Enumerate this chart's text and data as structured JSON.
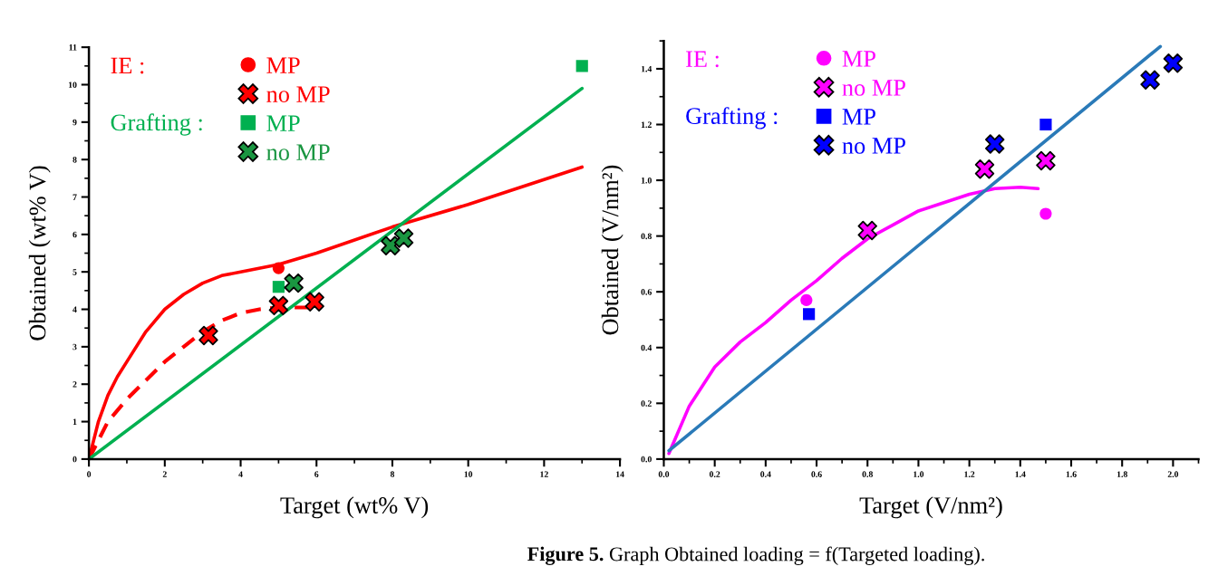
{
  "chart_data": [
    {
      "type": "scatter",
      "xlabel": "Target (wt% V)",
      "ylabel": "Obtained (wt% V)",
      "xlim": [
        0,
        14
      ],
      "xticks": [
        0,
        2,
        4,
        6,
        8,
        10,
        12,
        14
      ],
      "ylim": [
        0,
        11
      ],
      "yticks": [
        0,
        1,
        2,
        3,
        4,
        5,
        6,
        7,
        8,
        9,
        10,
        11
      ],
      "grid": false,
      "legend": "top left",
      "legend_title": "IE :",
      "annotations": [
        "Grafting :",
        "Figure 5. Graph Obtained loading = f(Targeted loading)."
      ],
      "series": [
        {
          "name": "MP",
          "marker": "circle",
          "color": "#ff0000",
          "x": [
            5
          ],
          "values": [
            5.1
          ]
        },
        {
          "name": "no MP",
          "marker": "cross",
          "color": "#ff0000",
          "x": [
            3.15,
            5,
            5.95
          ],
          "values": [
            3.3,
            4.1,
            4.2
          ]
        },
        {
          "name": "MP",
          "marker": "square",
          "color": "#00b050",
          "x": [
            5,
            13
          ],
          "values": [
            4.6,
            10.5
          ]
        },
        {
          "name": "no MP",
          "marker": "cross",
          "color": "#1a9641",
          "x": [
            5.4,
            7.95,
            8.3
          ],
          "values": [
            4.7,
            5.7,
            5.9
          ]
        },
        {
          "type": "line",
          "line_style": "solid",
          "color": "#ff0000",
          "x": [
            0,
            0.25,
            0.5,
            0.75,
            1,
            1.5,
            2,
            2.5,
            3,
            3.5,
            4,
            5,
            6,
            8,
            10,
            13
          ],
          "values": [
            0,
            1.0,
            1.7,
            2.2,
            2.6,
            3.4,
            4.0,
            4.4,
            4.7,
            4.9,
            5.0,
            5.2,
            5.5,
            6.2,
            6.8,
            7.8
          ]
        },
        {
          "type": "line",
          "line_style": "dashed",
          "color": "#ff0000",
          "x": [
            0,
            0.5,
            1,
            1.5,
            2,
            2.5,
            3,
            3.5,
            4,
            4.5,
            5,
            5.9
          ],
          "values": [
            0,
            1.0,
            1.6,
            2.1,
            2.6,
            3.0,
            3.4,
            3.7,
            3.9,
            4.0,
            4.05,
            4.05
          ]
        },
        {
          "type": "line",
          "line_style": "solid",
          "color": "#00b050",
          "x": [
            0,
            13
          ],
          "values": [
            0,
            9.9
          ]
        }
      ]
    },
    {
      "type": "scatter",
      "xlabel": "Target (V/nm²)",
      "ylabel": "Obtained (V/nm²)",
      "xlim": [
        0,
        2.1
      ],
      "xticks": [
        {
          "value": 0,
          "label": "0.0"
        },
        0.2,
        0.4,
        0.6,
        0.8,
        {
          "value": 1,
          "label": "1.0"
        },
        1.2,
        1.4,
        1.6,
        1.8,
        {
          "value": 2,
          "label": "2.0"
        }
      ],
      "ylim": [
        0,
        1.5
      ],
      "yticks": [
        {
          "value": 0,
          "label": "0.0"
        },
        0.2,
        0.4,
        0.6,
        0.8,
        {
          "value": 1,
          "label": "1.0"
        },
        1.2,
        1.4
      ],
      "grid": false,
      "legend": "top left",
      "legend_title": "IE :",
      "annotations": [
        "Grafting :"
      ],
      "series": [
        {
          "name": "MP",
          "marker": "circle",
          "color": "#ff00ff",
          "x": [
            0.56,
            1.5
          ],
          "values": [
            0.57,
            0.88
          ]
        },
        {
          "name": "no MP",
          "marker": "cross",
          "color": "#ff00ff",
          "x": [
            0.8,
            1.26,
            1.5
          ],
          "values": [
            0.82,
            1.04,
            1.07
          ]
        },
        {
          "name": "MP",
          "marker": "square",
          "color": "#0000ff",
          "x": [
            0.57,
            1.5
          ],
          "values": [
            0.52,
            1.2
          ]
        },
        {
          "name": "no MP",
          "marker": "cross",
          "color": "#0000ff",
          "x": [
            1.3,
            1.91,
            2.0
          ],
          "values": [
            1.13,
            1.36,
            1.42
          ]
        },
        {
          "type": "line",
          "line_style": "solid",
          "color": "#ff00ff",
          "x": [
            0.02,
            0.1,
            0.2,
            0.3,
            0.4,
            0.5,
            0.6,
            0.7,
            0.8,
            0.9,
            1.0,
            1.1,
            1.2,
            1.3,
            1.4,
            1.47
          ],
          "values": [
            0.02,
            0.19,
            0.33,
            0.42,
            0.49,
            0.57,
            0.64,
            0.72,
            0.79,
            0.84,
            0.89,
            0.92,
            0.95,
            0.97,
            0.975,
            0.97
          ]
        },
        {
          "type": "line",
          "line_style": "solid",
          "color": "#2a7ab8",
          "x": [
            0.02,
            1.95
          ],
          "values": [
            0.03,
            1.48
          ]
        }
      ]
    }
  ]
}
